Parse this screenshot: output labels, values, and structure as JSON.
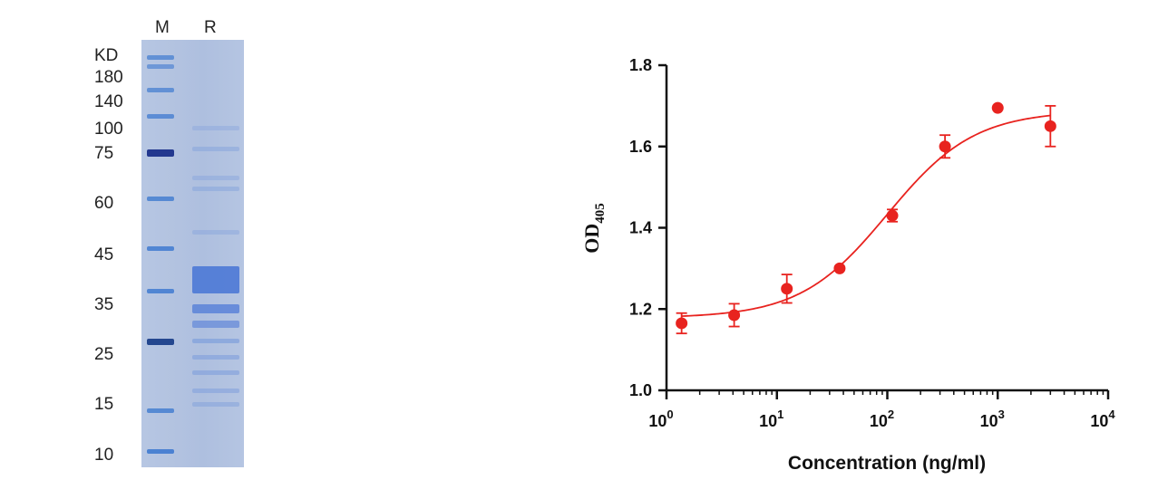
{
  "gel": {
    "lanes": [
      "M",
      "R"
    ],
    "unit_label": "KD",
    "markers": [
      "180",
      "140",
      "100",
      "75",
      "60",
      "45",
      "35",
      "25",
      "15",
      "10"
    ]
  },
  "chart_data": {
    "type": "scatter",
    "xscale": "log",
    "xlim": [
      1,
      10000
    ],
    "ylim": [
      1.0,
      1.8
    ],
    "xlabel": "Concentration (ng/ml)",
    "ylabel": "OD",
    "ylabel_sub": "405",
    "x_ticks": [
      1,
      10,
      100,
      1000,
      10000
    ],
    "x_tick_bases": [
      "10",
      "10",
      "10",
      "10",
      "10"
    ],
    "x_tick_exponents": [
      "0",
      "1",
      "2",
      "3",
      "4"
    ],
    "y_ticks": [
      "1.0",
      "1.2",
      "1.4",
      "1.6",
      "1.8"
    ],
    "grid": false,
    "color": "#e8231f",
    "points": [
      {
        "x": 1.37,
        "y": 1.165,
        "err": 0.025
      },
      {
        "x": 4.1,
        "y": 1.185,
        "err": 0.028
      },
      {
        "x": 12.3,
        "y": 1.25,
        "err": 0.035
      },
      {
        "x": 37,
        "y": 1.3,
        "err": 0.0
      },
      {
        "x": 111,
        "y": 1.43,
        "err": 0.015
      },
      {
        "x": 333,
        "y": 1.6,
        "err": 0.028
      },
      {
        "x": 1000,
        "y": 1.695,
        "err": 0.0
      },
      {
        "x": 3000,
        "y": 1.65,
        "err": 0.05
      }
    ],
    "fit": {
      "type": "4PL",
      "bottom": 1.178,
      "top": 1.688,
      "ec50": 100,
      "hill": 1.1
    }
  }
}
